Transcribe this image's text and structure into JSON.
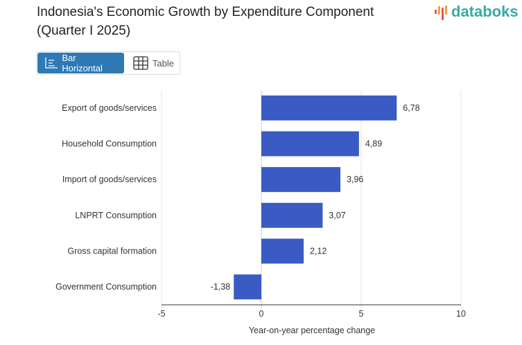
{
  "title": "Indonesia's Economic Growth by Expenditure Component (Quarter I 2025)",
  "logo": {
    "text": "databoks"
  },
  "view_toggle": {
    "bar_label": "Bar Horizontal",
    "table_label": "Table",
    "active": "Bar Horizontal"
  },
  "colors": {
    "bar": "#3a5bc4",
    "active_button": "#2f7ab5",
    "logo": "#3aa9a0",
    "logo_accent": "#e8584f"
  },
  "chart_data": {
    "type": "bar",
    "orientation": "horizontal",
    "categories": [
      "Export of goods/services",
      "Household Consumption",
      "Import of goods/services",
      "LNPRT Consumption",
      "Gross capital formation",
      "Government Consumption"
    ],
    "values": [
      6.78,
      4.89,
      3.96,
      3.07,
      2.12,
      -1.38
    ],
    "data_labels": [
      "6,78",
      "4,89",
      "3,96",
      "3,07",
      "2,12",
      "-1,38"
    ],
    "xlabel": "Year-on-year percentage change",
    "xlim": [
      -5,
      10
    ],
    "xticks": [
      -5,
      0,
      5,
      10
    ],
    "xtick_labels": [
      "-5",
      "0",
      "5",
      "10"
    ],
    "grid": true
  }
}
